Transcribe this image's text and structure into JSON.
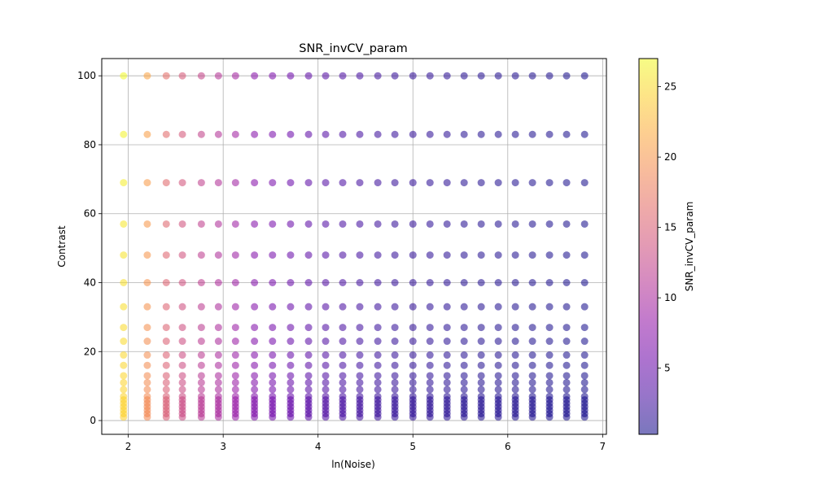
{
  "chart_data": {
    "type": "scatter",
    "title": "SNR_invCV_param",
    "xlabel": "ln(Noise)",
    "ylabel": "Contrast",
    "colorbar_label": "SNR_invCV_param",
    "xlim": [
      1.72,
      7.04
    ],
    "ylim": [
      -4.0,
      105.0
    ],
    "clim": [
      0.3,
      27.0
    ],
    "colormap": "plasma",
    "marker_alpha": 0.55,
    "grid": true,
    "x_ticks": [
      2,
      3,
      4,
      5,
      6,
      7
    ],
    "y_ticks": [
      0,
      20,
      40,
      60,
      80,
      100
    ],
    "colorbar_ticks": [
      5,
      10,
      15,
      20,
      25
    ],
    "x": [
      1.95,
      2.2,
      2.4,
      2.57,
      2.77,
      2.95,
      3.13,
      3.33,
      3.52,
      3.71,
      3.9,
      4.08,
      4.26,
      4.44,
      4.63,
      4.81,
      5.0,
      5.18,
      5.36,
      5.54,
      5.72,
      5.9,
      6.08,
      6.26,
      6.44,
      6.62,
      6.81
    ],
    "contrast_levels": [
      1,
      2,
      3,
      4,
      5,
      6,
      7,
      9,
      11,
      13,
      16,
      19,
      23,
      27,
      33,
      40,
      48,
      57,
      69,
      83,
      100
    ],
    "snr_base_by_x": [
      27.0,
      21.0,
      16.5,
      14.5,
      12.5,
      11.0,
      9.5,
      7.5,
      6.5,
      5.5,
      4.5,
      3.8,
      3.2,
      2.8,
      2.4,
      2.0,
      1.8,
      1.6,
      1.4,
      1.2,
      1.1,
      1.0,
      0.9,
      0.8,
      0.7,
      0.6,
      0.5
    ]
  }
}
